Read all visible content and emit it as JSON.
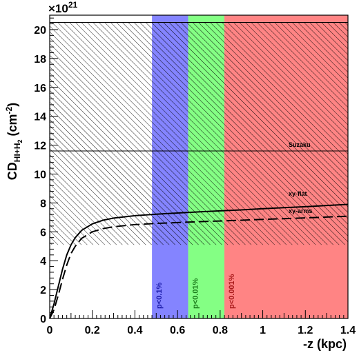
{
  "chart_data": {
    "type": "line",
    "title": "",
    "xlabel": "-z (kpc)",
    "ylabel_main": "CD",
    "ylabel_sub": "HI+H",
    "ylabel_sub2": "2",
    "ylabel_unit": "(cm",
    "ylabel_unit_exp": "-2",
    "ylabel_unit_close": ")",
    "y_multiplier_base": "×10",
    "y_multiplier_exp": "21",
    "xlim": [
      0,
      1.4
    ],
    "ylim": [
      0,
      21
    ],
    "x_ticks": [
      0,
      0.2,
      0.4,
      0.6,
      0.8,
      1,
      1.2,
      1.4
    ],
    "x_tick_labels": [
      "0",
      "0.2",
      "0.4",
      "0.6",
      "0.8",
      "1",
      "1.2",
      "1.4"
    ],
    "y_ticks": [
      0,
      2,
      4,
      6,
      8,
      10,
      12,
      14,
      16,
      18,
      20
    ],
    "y_tick_labels": [
      "0",
      "2",
      "4",
      "6",
      "8",
      "10",
      "12",
      "14",
      "16",
      "18",
      "20"
    ],
    "hatched_band": {
      "y_min": 5.1,
      "y_max": 20.5,
      "x_min": 0,
      "x_max": 1.4
    },
    "suzaku": {
      "label": "Suzaku",
      "y": 11.6
    },
    "regions": [
      {
        "label": "p<0.1%",
        "x_min": 0.48,
        "x_max": 0.65,
        "color": "#6f6fff",
        "text_color": "#1a1aa8"
      },
      {
        "label": "p<0.01%",
        "x_min": 0.65,
        "x_max": 0.82,
        "color": "#6fff6f",
        "text_color": "#1a7a1a"
      },
      {
        "label": "p<0.001%",
        "x_min": 0.82,
        "x_max": 1.4,
        "color": "#ff6f6f",
        "text_color": "#a81a1a"
      }
    ],
    "series": [
      {
        "name": "xy-flat",
        "style": "solid",
        "x": [
          0,
          0.02,
          0.04,
          0.06,
          0.08,
          0.1,
          0.12,
          0.15,
          0.2,
          0.25,
          0.3,
          0.4,
          0.5,
          0.6,
          0.7,
          0.8,
          0.9,
          1.0,
          1.1,
          1.2,
          1.3,
          1.4
        ],
        "y": [
          0,
          1.0,
          2.2,
          3.4,
          4.4,
          5.1,
          5.6,
          6.1,
          6.55,
          6.8,
          6.95,
          7.12,
          7.22,
          7.3,
          7.38,
          7.45,
          7.52,
          7.6,
          7.67,
          7.74,
          7.82,
          7.9
        ]
      },
      {
        "name": "xy-arms",
        "style": "dashed",
        "x": [
          0,
          0.02,
          0.04,
          0.06,
          0.08,
          0.1,
          0.12,
          0.15,
          0.2,
          0.25,
          0.3,
          0.4,
          0.5,
          0.6,
          0.7,
          0.8,
          0.9,
          1.0,
          1.1,
          1.2,
          1.3,
          1.4
        ],
        "y": [
          0,
          0.6,
          1.6,
          2.7,
          3.7,
          4.5,
          5.0,
          5.55,
          6.0,
          6.22,
          6.35,
          6.5,
          6.58,
          6.64,
          6.7,
          6.75,
          6.8,
          6.86,
          6.91,
          6.96,
          7.02,
          7.08
        ]
      }
    ],
    "grid": false,
    "legend": "none"
  }
}
